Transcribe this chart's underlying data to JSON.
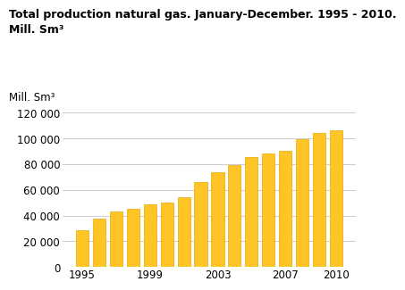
{
  "title_line1": "Total production natural gas. January-December. 1995 - 2010.",
  "title_line2": "Mill. Sm³",
  "ylabel": "Mill. Sm³",
  "years": [
    1995,
    1996,
    1997,
    1998,
    1999,
    2000,
    2001,
    2002,
    2003,
    2004,
    2005,
    2006,
    2007,
    2008,
    2009,
    2010
  ],
  "values": [
    28500,
    38000,
    43500,
    45000,
    49000,
    50500,
    54500,
    66000,
    73500,
    79000,
    85500,
    88500,
    90500,
    99500,
    104000,
    106500
  ],
  "bar_color": "#FFC425",
  "bar_edge_color": "#E8A800",
  "ylim": [
    0,
    120000
  ],
  "yticks": [
    0,
    20000,
    40000,
    60000,
    80000,
    100000,
    120000
  ],
  "xticks": [
    1995,
    1999,
    2003,
    2007,
    2010
  ],
  "grid_color": "#cccccc",
  "background_color": "#ffffff",
  "title_fontsize": 9.0,
  "axis_fontsize": 8.5
}
